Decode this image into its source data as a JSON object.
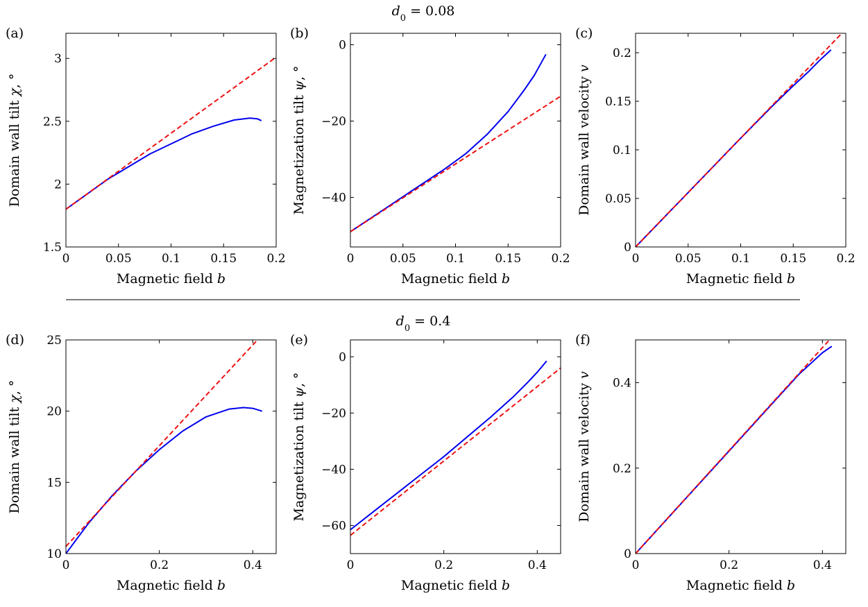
{
  "figure": {
    "sections": [
      {
        "title_var": "d",
        "title_sub": "0",
        "title_eq": " = 0.08"
      },
      {
        "title_var": "d",
        "title_sub": "0",
        "title_eq": " = 0.4"
      }
    ],
    "colors": {
      "numerical": "#0000ee",
      "linear": "#ee1111",
      "axis": "#000000"
    }
  },
  "chart_data": [
    {
      "panel": "(a)",
      "type": "line",
      "xlabel": "Magnetic field ",
      "xlabel_var": "b",
      "ylabel": "Domain wall tilt ",
      "ylabel_var": "χ",
      "ylabel_unit": ", °",
      "xlim": [
        0,
        0.2
      ],
      "ylim": [
        1.5,
        3.2
      ],
      "xticks": [
        0,
        0.05,
        0.1,
        0.15,
        0.2
      ],
      "xtick_labels": [
        "0",
        "0.05",
        "0.1",
        "0.15",
        "0.2"
      ],
      "yticks": [
        1.5,
        2,
        2.5,
        3
      ],
      "ytick_labels": [
        "1.5",
        "2",
        "2.5",
        "3"
      ],
      "series": [
        {
          "style": "solid",
          "color": "#0000ee",
          "x": [
            0,
            0.02,
            0.04,
            0.06,
            0.08,
            0.1,
            0.12,
            0.14,
            0.16,
            0.175,
            0.182,
            0.186
          ],
          "y": [
            1.8,
            1.92,
            2.04,
            2.14,
            2.24,
            2.32,
            2.4,
            2.46,
            2.51,
            2.525,
            2.52,
            2.505
          ]
        },
        {
          "style": "dashed",
          "color": "#ee1111",
          "x": [
            0,
            0.2
          ],
          "y": [
            1.8,
            3.01
          ]
        }
      ]
    },
    {
      "panel": "(b)",
      "type": "line",
      "xlabel": "Magnetic field ",
      "xlabel_var": "b",
      "ylabel": "Magnetization tilt ",
      "ylabel_var": "ψ",
      "ylabel_unit": ", °",
      "xlim": [
        0,
        0.2
      ],
      "ylim": [
        -53,
        3
      ],
      "xticks": [
        0,
        0.05,
        0.1,
        0.15,
        0.2
      ],
      "xtick_labels": [
        "0",
        "0.05",
        "0.1",
        "0.15",
        "0.2"
      ],
      "yticks": [
        -40,
        -20,
        0
      ],
      "ytick_labels": [
        "−40",
        "−20",
        "0"
      ],
      "series": [
        {
          "style": "solid",
          "color": "#0000ee",
          "x": [
            0,
            0.03,
            0.06,
            0.09,
            0.11,
            0.13,
            0.15,
            0.165,
            0.175,
            0.182,
            0.186
          ],
          "y": [
            -49,
            -43.5,
            -38,
            -32.5,
            -28.5,
            -23.5,
            -17.5,
            -12,
            -8,
            -4.5,
            -2.5
          ]
        },
        {
          "style": "dashed",
          "color": "#ee1111",
          "x": [
            0,
            0.2
          ],
          "y": [
            -49,
            -13.5
          ]
        }
      ]
    },
    {
      "panel": "(c)",
      "type": "line",
      "xlabel": "Magnetic field ",
      "xlabel_var": "b",
      "ylabel": "Domain wall velocity ",
      "ylabel_var": "v",
      "ylabel_unit": "",
      "xlim": [
        0,
        0.2
      ],
      "ylim": [
        0,
        0.22
      ],
      "xticks": [
        0,
        0.05,
        0.1,
        0.15,
        0.2
      ],
      "xtick_labels": [
        "0",
        "0.05",
        "0.1",
        "0.15",
        "0.2"
      ],
      "yticks": [
        0,
        0.05,
        0.1,
        0.15,
        0.2
      ],
      "ytick_labels": [
        "0",
        "0.05",
        "0.1",
        "0.15",
        "0.2"
      ],
      "series": [
        {
          "style": "solid",
          "color": "#0000ee",
          "x": [
            0,
            0.05,
            0.1,
            0.13,
            0.15,
            0.165,
            0.175,
            0.182,
            0.186
          ],
          "y": [
            0,
            0.056,
            0.112,
            0.145,
            0.166,
            0.181,
            0.192,
            0.199,
            0.203
          ]
        },
        {
          "style": "dashed",
          "color": "#ee1111",
          "x": [
            0,
            0.198
          ],
          "y": [
            0,
            0.222
          ]
        }
      ]
    },
    {
      "panel": "(d)",
      "type": "line",
      "xlabel": "Magnetic field ",
      "xlabel_var": "b",
      "ylabel": "Domain wall tilt ",
      "ylabel_var": "χ",
      "ylabel_unit": ", °",
      "xlim": [
        0,
        0.45
      ],
      "ylim": [
        10,
        25
      ],
      "xticks": [
        0,
        0.2,
        0.4
      ],
      "xtick_labels": [
        "0",
        "0.2",
        "0.4"
      ],
      "yticks": [
        10,
        15,
        20,
        25
      ],
      "ytick_labels": [
        "10",
        "15",
        "20",
        "25"
      ],
      "series": [
        {
          "style": "solid",
          "color": "#0000ee",
          "x": [
            0,
            0.025,
            0.05,
            0.1,
            0.15,
            0.2,
            0.25,
            0.3,
            0.35,
            0.38,
            0.4,
            0.42
          ],
          "y": [
            10.0,
            11.1,
            12.2,
            14.1,
            15.8,
            17.3,
            18.6,
            19.6,
            20.15,
            20.25,
            20.2,
            20.0
          ]
        },
        {
          "style": "dashed",
          "color": "#ee1111",
          "x": [
            0,
            0.41
          ],
          "y": [
            10.5,
            25
          ]
        }
      ]
    },
    {
      "panel": "(e)",
      "type": "line",
      "xlabel": "Magnetic field ",
      "xlabel_var": "b",
      "ylabel": "Magnetization tilt ",
      "ylabel_var": "ψ",
      "ylabel_unit": ", °",
      "xlim": [
        0,
        0.45
      ],
      "ylim": [
        -70,
        6
      ],
      "xticks": [
        0,
        0.2,
        0.4
      ],
      "xtick_labels": [
        "0",
        "0.2",
        "0.4"
      ],
      "yticks": [
        -60,
        -40,
        -20,
        0
      ],
      "ytick_labels": [
        "−60",
        "−40",
        "−20",
        "0"
      ],
      "series": [
        {
          "style": "solid",
          "color": "#0000ee",
          "x": [
            0,
            0.05,
            0.1,
            0.15,
            0.2,
            0.25,
            0.3,
            0.35,
            0.38,
            0.4,
            0.41,
            0.42
          ],
          "y": [
            -61.5,
            -55,
            -48.5,
            -42,
            -35.5,
            -28.5,
            -21.5,
            -14,
            -9,
            -5.5,
            -3.5,
            -1.5
          ]
        },
        {
          "style": "dashed",
          "color": "#ee1111",
          "x": [
            0,
            0.45
          ],
          "y": [
            -63.5,
            -4
          ]
        }
      ]
    },
    {
      "panel": "(f)",
      "type": "line",
      "xlabel": "Magnetic field ",
      "xlabel_var": "b",
      "ylabel": "Domain wall velocity ",
      "ylabel_var": "v",
      "ylabel_unit": "",
      "xlim": [
        0,
        0.45
      ],
      "ylim": [
        0,
        0.5
      ],
      "xticks": [
        0,
        0.2,
        0.4
      ],
      "xtick_labels": [
        "0",
        "0.2",
        "0.4"
      ],
      "yticks": [
        0,
        0.2,
        0.4
      ],
      "ytick_labels": [
        "0",
        "0.2",
        "0.4"
      ],
      "series": [
        {
          "style": "solid",
          "color": "#0000ee",
          "x": [
            0,
            0.1,
            0.2,
            0.3,
            0.35,
            0.38,
            0.4,
            0.42
          ],
          "y": [
            0,
            0.12,
            0.24,
            0.36,
            0.42,
            0.45,
            0.47,
            0.485
          ]
        },
        {
          "style": "dashed",
          "color": "#ee1111",
          "x": [
            0,
            0.415
          ],
          "y": [
            0,
            0.5
          ]
        }
      ]
    }
  ]
}
